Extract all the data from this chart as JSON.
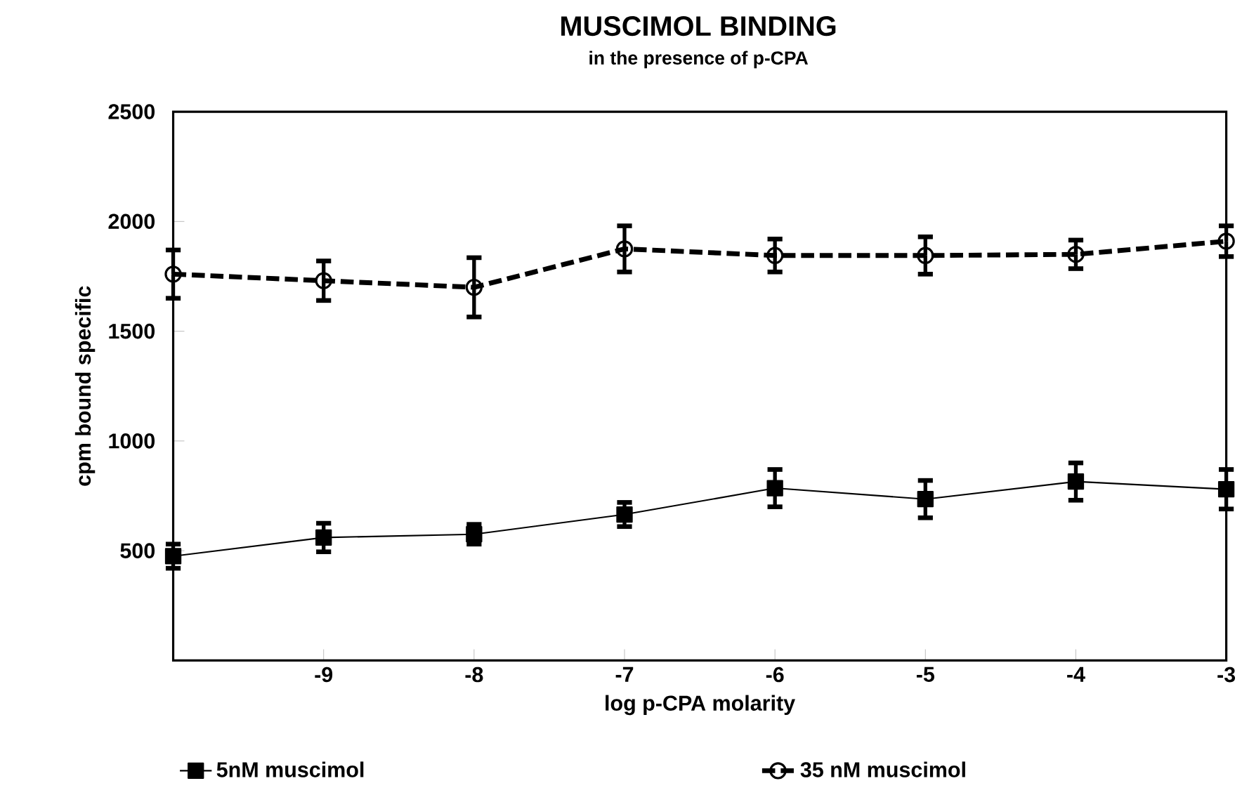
{
  "chart_data": {
    "type": "line",
    "title": "MUSCIMOL BINDING",
    "subtitle": "in the presence of p-CPA",
    "xlabel": "log p-CPA molarity",
    "ylabel": "cpm bound specific",
    "x": [
      -10,
      -9,
      -8,
      -7,
      -6,
      -5,
      -4,
      -3
    ],
    "series": [
      {
        "name": "5nM muscimol",
        "color": "#000000",
        "marker": "square",
        "line_style": "solid",
        "values": [
          475,
          560,
          575,
          665,
          785,
          735,
          815,
          780
        ],
        "errors": [
          55,
          65,
          45,
          55,
          85,
          85,
          85,
          90
        ]
      },
      {
        "name": "35 nM muscimol",
        "color": "#000000",
        "marker": "circle",
        "line_style": "dashed",
        "values": [
          1760,
          1730,
          1700,
          1875,
          1845,
          1845,
          1850,
          1910
        ],
        "errors": [
          110,
          90,
          135,
          105,
          75,
          85,
          65,
          70
        ]
      }
    ],
    "xlim": [
      -10,
      -3
    ],
    "xticks": [
      -9,
      -8,
      -7,
      -6,
      -5,
      -4,
      -3
    ],
    "ylim": [
      0,
      2500
    ],
    "yticks": [
      500,
      1000,
      1500,
      2000,
      2500
    ],
    "grid": false,
    "legend": "bottom"
  }
}
